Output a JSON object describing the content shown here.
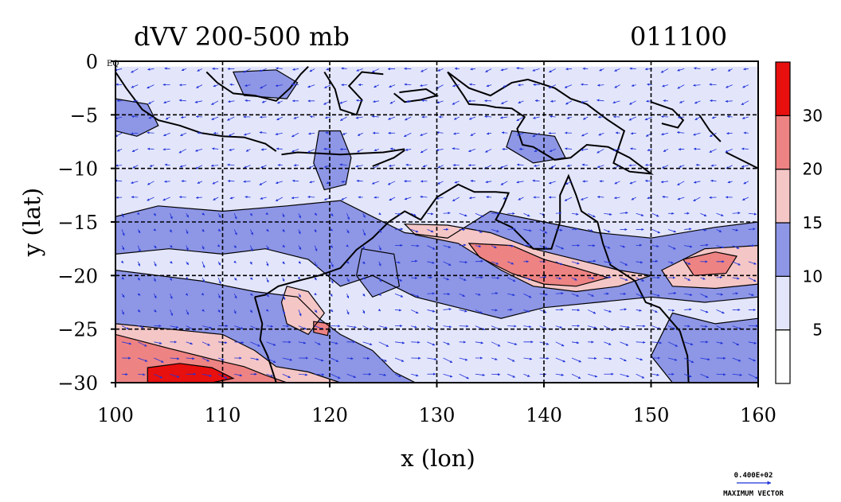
{
  "chart_data": {
    "type": "heatmap",
    "title": "dVV 200-500 mb",
    "title_right": "011100",
    "xlabel": "x (lon)",
    "ylabel": "y (lat)",
    "xlim": [
      100,
      160
    ],
    "ylim": [
      -30,
      0
    ],
    "x_ticks": [
      100,
      110,
      120,
      130,
      140,
      150,
      160
    ],
    "y_ticks": [
      0,
      -5,
      -10,
      -15,
      -20,
      -25,
      -30
    ],
    "y_tick_labels": [
      "0",
      "−5",
      "−10",
      "−15",
      "−20",
      "−25",
      "−30"
    ],
    "eq_label": "EQ",
    "grid": true,
    "colorbar": {
      "levels": [
        5,
        10,
        15,
        20,
        30
      ],
      "labels": [
        "5",
        "10",
        "15",
        "20",
        "30"
      ],
      "colors": [
        "#ffffff",
        "#e3e5fb",
        "#8e96e6",
        "#f5c6c6",
        "#ee8383",
        "#e80f0f"
      ]
    },
    "vector_legend": {
      "value": "0.400E+02",
      "label": "MAXIMUM VECTOR"
    },
    "regions": [
      {
        "level": 1,
        "pts": [
          [
            100,
            -0.5
          ],
          [
            160,
            -0.5
          ],
          [
            160,
            -30
          ],
          [
            100,
            -30
          ]
        ]
      },
      {
        "level": 2,
        "pts": [
          [
            100,
            -14.5
          ],
          [
            104,
            -13.5
          ],
          [
            110,
            -14
          ],
          [
            116,
            -13.5
          ],
          [
            121,
            -13
          ],
          [
            124,
            -14.5
          ],
          [
            127,
            -16
          ],
          [
            131,
            -16.5
          ],
          [
            135,
            -14
          ],
          [
            140,
            -15
          ],
          [
            145,
            -16
          ],
          [
            150,
            -16.5
          ],
          [
            156,
            -15.5
          ],
          [
            160,
            -15
          ],
          [
            160,
            -22
          ],
          [
            155,
            -22.5
          ],
          [
            150,
            -22
          ],
          [
            145,
            -22.5
          ],
          [
            140,
            -23
          ],
          [
            136,
            -24
          ],
          [
            132,
            -23
          ],
          [
            128,
            -22
          ],
          [
            124,
            -20
          ],
          [
            121,
            -21
          ],
          [
            118,
            -18.5
          ],
          [
            114,
            -17.5
          ],
          [
            110,
            -18
          ],
          [
            105,
            -17.5
          ],
          [
            100,
            -18
          ]
        ]
      },
      {
        "level": 2,
        "pts": [
          [
            100,
            -19.5
          ],
          [
            104,
            -20
          ],
          [
            108,
            -20.5
          ],
          [
            113,
            -21.5
          ],
          [
            117,
            -22
          ],
          [
            119,
            -24
          ],
          [
            121,
            -25.5
          ],
          [
            124,
            -27
          ],
          [
            126,
            -29
          ],
          [
            128,
            -30
          ],
          [
            100,
            -30
          ]
        ]
      },
      {
        "level": 2,
        "pts": [
          [
            152,
            -23.5
          ],
          [
            156,
            -24.5
          ],
          [
            160,
            -24
          ],
          [
            160,
            -30
          ],
          [
            152,
            -30
          ],
          [
            150,
            -27.5
          ]
        ]
      },
      {
        "level": 2,
        "pts": [
          [
            119,
            -6.5
          ],
          [
            121,
            -6.5
          ],
          [
            122,
            -9
          ],
          [
            121.5,
            -11.5
          ],
          [
            119.5,
            -12
          ],
          [
            118.5,
            -9.5
          ]
        ]
      },
      {
        "level": 2,
        "pts": [
          [
            111,
            -1
          ],
          [
            115,
            -0.8
          ],
          [
            117,
            -2
          ],
          [
            116,
            -3.5
          ],
          [
            112,
            -3.2
          ]
        ]
      },
      {
        "level": 2,
        "pts": [
          [
            100,
            -3.5
          ],
          [
            103,
            -4
          ],
          [
            104,
            -6
          ],
          [
            102,
            -7
          ],
          [
            100,
            -6.5
          ]
        ]
      },
      {
        "level": 2,
        "pts": [
          [
            137,
            -6.5
          ],
          [
            141,
            -7
          ],
          [
            142,
            -9
          ],
          [
            139,
            -9.5
          ],
          [
            136.5,
            -8
          ]
        ]
      },
      {
        "level": 2,
        "pts": [
          [
            123,
            -17.5
          ],
          [
            126,
            -18
          ],
          [
            126.5,
            -21
          ],
          [
            124,
            -22
          ],
          [
            122.5,
            -20
          ]
        ]
      },
      {
        "level": 3,
        "pts": [
          [
            127,
            -15.2
          ],
          [
            131,
            -15.3
          ],
          [
            135,
            -16
          ],
          [
            139,
            -17.5
          ],
          [
            143,
            -18.5
          ],
          [
            147,
            -19.5
          ],
          [
            150,
            -20
          ],
          [
            147,
            -21
          ],
          [
            143,
            -21.5
          ],
          [
            139,
            -21
          ],
          [
            136,
            -19.5
          ],
          [
            132,
            -17
          ],
          [
            128,
            -16.2
          ]
        ]
      },
      {
        "level": 3,
        "pts": [
          [
            151,
            -19.5
          ],
          [
            155,
            -17.5
          ],
          [
            160,
            -17.2
          ],
          [
            160,
            -20.8
          ],
          [
            156,
            -21.2
          ],
          [
            152,
            -21
          ]
        ]
      },
      {
        "level": 3,
        "pts": [
          [
            100,
            -24.5
          ],
          [
            105,
            -25
          ],
          [
            110,
            -25.5
          ],
          [
            113,
            -27
          ],
          [
            115,
            -28.5
          ],
          [
            118,
            -29
          ],
          [
            121,
            -30
          ],
          [
            100,
            -30
          ]
        ]
      },
      {
        "level": 3,
        "pts": [
          [
            116,
            -21
          ],
          [
            118,
            -21.5
          ],
          [
            119.5,
            -23.5
          ],
          [
            118,
            -25.5
          ],
          [
            116,
            -24.5
          ],
          [
            115.5,
            -22.5
          ]
        ]
      },
      {
        "level": 4,
        "pts": [
          [
            133,
            -17
          ],
          [
            137,
            -17.2
          ],
          [
            140,
            -18.5
          ],
          [
            143,
            -19.3
          ],
          [
            146,
            -20.2
          ],
          [
            143,
            -21
          ],
          [
            140,
            -20.8
          ],
          [
            137,
            -19.8
          ],
          [
            134,
            -18.3
          ]
        ]
      },
      {
        "level": 4,
        "pts": [
          [
            153,
            -18.5
          ],
          [
            156,
            -17.8
          ],
          [
            158,
            -18.2
          ],
          [
            157,
            -19.8
          ],
          [
            154,
            -20
          ]
        ]
      },
      {
        "level": 4,
        "pts": [
          [
            100,
            -25.5
          ],
          [
            105,
            -26.8
          ],
          [
            109,
            -27.8
          ],
          [
            112,
            -28.5
          ],
          [
            114,
            -29.3
          ],
          [
            116,
            -30
          ],
          [
            100,
            -30
          ]
        ]
      },
      {
        "level": 4,
        "pts": [
          [
            118.5,
            -24.3
          ],
          [
            120,
            -24.5
          ],
          [
            119.8,
            -25.6
          ],
          [
            118.5,
            -25.3
          ]
        ]
      },
      {
        "level": 5,
        "pts": [
          [
            103,
            -28.6
          ],
          [
            106,
            -28.2
          ],
          [
            109,
            -28.6
          ],
          [
            111,
            -29.6
          ],
          [
            109,
            -30
          ],
          [
            103,
            -30
          ]
        ]
      }
    ],
    "coastlines": [
      [
        [
          100,
          -1
        ],
        [
          101,
          -2.5
        ],
        [
          102.5,
          -4.5
        ],
        [
          104,
          -5.5
        ],
        [
          106,
          -6
        ],
        [
          108,
          -6.7
        ],
        [
          110,
          -7
        ],
        [
          112,
          -7.1
        ],
        [
          114,
          -7.7
        ],
        [
          115,
          -8.4
        ]
      ],
      [
        [
          115.5,
          -8.7
        ],
        [
          117,
          -8.5
        ],
        [
          119,
          -8.6
        ],
        [
          121,
          -8.7
        ],
        [
          123,
          -8.6
        ],
        [
          125,
          -8.5
        ],
        [
          127,
          -8.2
        ]
      ],
      [
        [
          124,
          -9.8
        ],
        [
          126,
          -9
        ],
        [
          127,
          -8.3
        ]
      ],
      [
        [
          108.5,
          -1
        ],
        [
          109.5,
          -2
        ],
        [
          111,
          -3
        ],
        [
          113,
          -3.2
        ],
        [
          115,
          -3.7
        ],
        [
          116.3,
          -2.5
        ],
        [
          117.3,
          -1.2
        ],
        [
          118,
          -0.5
        ]
      ],
      [
        [
          119.5,
          -1
        ],
        [
          120.5,
          -2.6
        ],
        [
          121,
          -4.5
        ],
        [
          122.5,
          -5
        ],
        [
          123,
          -3.6
        ],
        [
          121.8,
          -2.3
        ],
        [
          123,
          -1
        ],
        [
          125,
          -1.2
        ]
      ],
      [
        [
          126,
          -3
        ],
        [
          127,
          -3.8
        ],
        [
          128.5,
          -3.6
        ],
        [
          130,
          -3.2
        ],
        [
          129,
          -2.6
        ],
        [
          126.5,
          -2.9
        ]
      ],
      [
        [
          131,
          -1
        ],
        [
          133,
          -2.5
        ],
        [
          135,
          -3.2
        ],
        [
          137,
          -2
        ],
        [
          138.5,
          -1.7
        ],
        [
          141,
          -2.5
        ],
        [
          142.5,
          -3.5
        ],
        [
          144,
          -4
        ],
        [
          146,
          -5.5
        ],
        [
          147.5,
          -6.5
        ],
        [
          147,
          -8
        ],
        [
          146.5,
          -9.5
        ],
        [
          148,
          -10.3
        ],
        [
          150,
          -10.5
        ],
        [
          148,
          -9
        ],
        [
          146,
          -8
        ],
        [
          144,
          -7.8
        ],
        [
          142.5,
          -9
        ],
        [
          141,
          -9.2
        ],
        [
          139,
          -8
        ],
        [
          138,
          -7.8
        ],
        [
          137.5,
          -6.3
        ],
        [
          138.2,
          -5.2
        ],
        [
          137,
          -4.4
        ],
        [
          135.5,
          -4.3
        ],
        [
          134.5,
          -4.1
        ],
        [
          133,
          -4
        ],
        [
          132.5,
          -3.2
        ],
        [
          131,
          -1
        ]
      ],
      [
        [
          150,
          -3.8
        ],
        [
          152,
          -4.5
        ],
        [
          153,
          -5.5
        ],
        [
          152.5,
          -6.2
        ],
        [
          151,
          -5.8
        ]
      ],
      [
        [
          154.5,
          -5
        ],
        [
          155.5,
          -6.5
        ],
        [
          156.5,
          -7.5
        ]
      ],
      [
        [
          157,
          -8.5
        ],
        [
          159,
          -9.5
        ],
        [
          160,
          -10
        ]
      ],
      [
        [
          113,
          -22
        ],
        [
          114,
          -21.8
        ],
        [
          115.2,
          -21
        ],
        [
          117,
          -20.5
        ],
        [
          119,
          -20
        ],
        [
          121,
          -19.3
        ],
        [
          122.5,
          -17.6
        ],
        [
          124,
          -16.5
        ],
        [
          125.5,
          -15
        ],
        [
          127,
          -14
        ],
        [
          128.5,
          -14.8
        ],
        [
          130,
          -12.7
        ],
        [
          132,
          -11.5
        ],
        [
          133.5,
          -12.2
        ],
        [
          135.5,
          -12.2
        ],
        [
          136.7,
          -12.3
        ],
        [
          136.2,
          -13.5
        ],
        [
          135.5,
          -14.8
        ],
        [
          137,
          -15.5
        ],
        [
          139,
          -17.5
        ],
        [
          140.7,
          -17.5
        ],
        [
          141.5,
          -15
        ],
        [
          141.5,
          -12.5
        ],
        [
          142.3,
          -10.7
        ],
        [
          143,
          -12.5
        ],
        [
          143.5,
          -14
        ],
        [
          145,
          -15
        ],
        [
          145.5,
          -17
        ],
        [
          146.2,
          -19
        ],
        [
          148.5,
          -20.5
        ],
        [
          149.5,
          -22.5
        ],
        [
          150.8,
          -23
        ],
        [
          152.7,
          -25.2
        ],
        [
          153.4,
          -27.5
        ],
        [
          153.5,
          -30
        ]
      ],
      [
        [
          113,
          -22
        ],
        [
          113.7,
          -24.5
        ],
        [
          113.5,
          -26
        ],
        [
          114.2,
          -27.5
        ],
        [
          115,
          -30
        ]
      ]
    ]
  }
}
